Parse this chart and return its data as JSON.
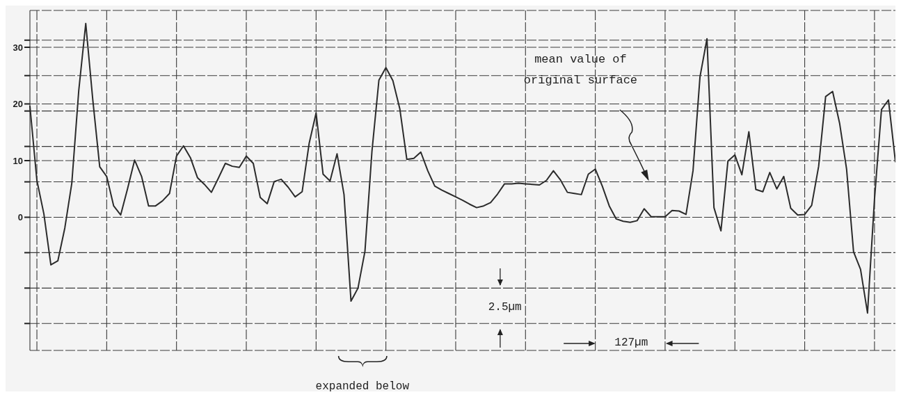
{
  "chart_data": {
    "type": "line",
    "color": "#2b2b2b",
    "marker": "none",
    "line_style": "solid",
    "grid": true,
    "tick_labels": "y",
    "categories": [
      null,
      null,
      null,
      null,
      null,
      null,
      null,
      null,
      null,
      null,
      null,
      null,
      null,
      null,
      null,
      null,
      null,
      null,
      null,
      null,
      null,
      null,
      null,
      null,
      null,
      null,
      null,
      null,
      null,
      null,
      null,
      null,
      null,
      null,
      null,
      null,
      null,
      null,
      null,
      null,
      null,
      null,
      null,
      null,
      null,
      null,
      null,
      null,
      null,
      null,
      null,
      null,
      null,
      null,
      null,
      null,
      null,
      null,
      null,
      null,
      null,
      null,
      null,
      null,
      null,
      null,
      null,
      null,
      null,
      null,
      null,
      null,
      null,
      null,
      null,
      null,
      null,
      null,
      null,
      null,
      null,
      null,
      null,
      null,
      null,
      null,
      null,
      null,
      null,
      null,
      null,
      null,
      null,
      null,
      null,
      null,
      null,
      null,
      null,
      null,
      null,
      null,
      null,
      null,
      null,
      null,
      null,
      null,
      null,
      null,
      null,
      null,
      null,
      null,
      null,
      null,
      null,
      null,
      null,
      null,
      null,
      null,
      null,
      null,
      null
    ],
    "ylim": [
      -23.5,
      36.5
    ],
    "yticks": [
      {
        "value": -18.75,
        "label": null
      },
      {
        "value": -12.5,
        "label": null
      },
      {
        "value": -6.25,
        "label": null
      },
      0,
      {
        "value": 6.25,
        "label": null
      },
      10,
      {
        "value": 12.5,
        "label": null
      },
      {
        "value": 18.75,
        "label": null
      },
      20,
      {
        "value": 25,
        "label": null
      },
      30,
      {
        "value": 31.25,
        "label": null
      }
    ],
    "values": [
      19.6,
      6.5,
      0.6,
      -8.4,
      -7.7,
      -1.9,
      6.0,
      22.4,
      34.2,
      20.8,
      8.9,
      7.2,
      2.0,
      0.4,
      5.1,
      10.1,
      7.2,
      2.0,
      2.0,
      2.9,
      4.2,
      10.8,
      12.6,
      10.5,
      7.0,
      5.8,
      4.4,
      6.9,
      9.5,
      9.0,
      8.8,
      10.8,
      9.5,
      3.5,
      2.4,
      6.3,
      6.7,
      5.3,
      3.6,
      4.5,
      13,
      18.4,
      7.6,
      6.4,
      11.2,
      4.0,
      -14.8,
      -12.5,
      -6.0,
      11.6,
      24.2,
      26.4,
      24.1,
      19.1,
      10.2,
      10.4,
      11.5,
      8.2,
      5.5,
      4.8,
      4.2,
      3.6,
      3.0,
      2.3,
      1.7,
      2.0,
      2.6,
      4.1,
      5.9,
      5.9,
      6.0,
      5.9,
      5.8,
      5.7,
      6.5,
      8.2,
      6.6,
      4.4,
      4.2,
      4.0,
      7.6,
      8.5,
      5.5,
      2.0,
      -0.3,
      -0.7,
      -0.9,
      -0.6,
      1.5,
      0.1,
      0.1,
      0.1,
      1.2,
      1.1,
      0.5,
      8.2,
      24.8,
      31.5,
      1.7,
      -2.4,
      9.9,
      11.0,
      7.5,
      15.1,
      4.9,
      4.5,
      7.9,
      5.0,
      7.2,
      1.6,
      0.4,
      0.5,
      2.1,
      9.0,
      21.3,
      22.2,
      16.6,
      8.5,
      -6.1,
      -9.2,
      -16.9,
      3.2,
      19.0,
      20.7,
      9.8
    ],
    "annotations": [
      "mean value of original surface",
      "2.5µm",
      "127µm",
      "expanded below"
    ]
  }
}
